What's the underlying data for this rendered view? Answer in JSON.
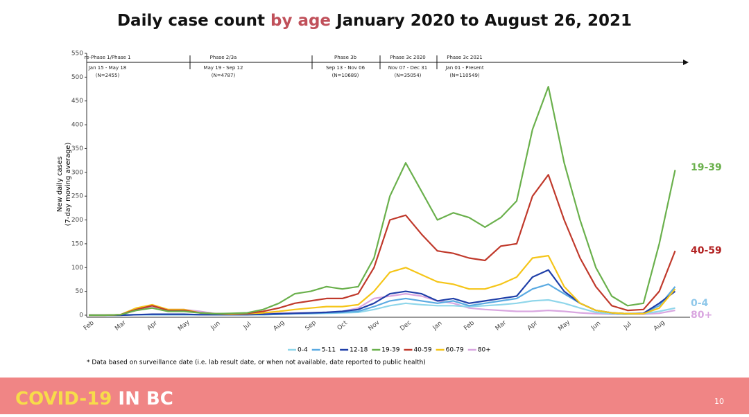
{
  "chart_data": {
    "type": "line",
    "title_parts": [
      "Daily case count",
      "by age",
      "January 2020 to August 26, 2021"
    ],
    "y_label_lines": [
      "New daily cases",
      "(7-day moving average)"
    ],
    "phases": [
      {
        "name": "re-Phase 1/Phase 1",
        "dates": "Jan 15 - May 18",
        "n": "(N=2455)"
      },
      {
        "name": "Phase 2/3a",
        "dates": "May 19 - Sep 12",
        "n": "(N=4787)"
      },
      {
        "name": "Phase 3b",
        "dates": "Sep 13 - Nov 06",
        "n": "(N=10689)"
      },
      {
        "name": "Phase 3c 2020",
        "dates": "Nov 07 - Dec 31",
        "n": "(N=35054)"
      },
      {
        "name": "Phase 3c 2021",
        "dates": "Jan 01 - Present",
        "n": "(N=110549)"
      }
    ],
    "categories": [
      "Feb",
      null,
      "Mar",
      null,
      "Apr",
      null,
      "May",
      null,
      "Jun",
      null,
      "Jul",
      null,
      "Aug",
      null,
      "Sep",
      null,
      "Oct",
      null,
      "Nov",
      null,
      "Dec",
      null,
      "Jan",
      null,
      "Feb",
      null,
      "Mar",
      null,
      "Apr",
      null,
      "May",
      null,
      "Jun",
      null,
      "Jul",
      null,
      "Aug",
      null
    ],
    "series": [
      {
        "name": "0-4",
        "color": "#8fd6ea",
        "values": [
          0,
          0,
          0,
          1,
          1,
          1,
          1,
          1,
          1,
          1,
          1,
          1,
          2,
          3,
          3,
          4,
          5,
          6,
          12,
          20,
          25,
          22,
          20,
          20,
          18,
          20,
          22,
          25,
          30,
          32,
          25,
          15,
          6,
          3,
          2,
          3,
          8,
          15
        ]
      },
      {
        "name": "5-11",
        "color": "#5aaae2",
        "values": [
          0,
          0,
          0,
          1,
          1,
          1,
          1,
          1,
          1,
          1,
          1,
          1,
          2,
          3,
          4,
          5,
          6,
          8,
          18,
          30,
          35,
          30,
          25,
          30,
          20,
          25,
          30,
          35,
          55,
          65,
          45,
          25,
          10,
          5,
          3,
          4,
          20,
          60
        ]
      },
      {
        "name": "12-18",
        "color": "#1f3fa8",
        "values": [
          0,
          0,
          0,
          1,
          2,
          2,
          2,
          1,
          1,
          1,
          1,
          2,
          3,
          4,
          5,
          6,
          8,
          12,
          25,
          45,
          50,
          45,
          30,
          35,
          25,
          30,
          35,
          40,
          80,
          95,
          50,
          25,
          10,
          5,
          3,
          4,
          25,
          50
        ]
      },
      {
        "name": "19-39",
        "color": "#6ab04c",
        "values": [
          0,
          0,
          1,
          10,
          15,
          8,
          8,
          5,
          3,
          4,
          5,
          12,
          25,
          45,
          50,
          60,
          55,
          60,
          120,
          250,
          320,
          260,
          200,
          215,
          205,
          185,
          205,
          240,
          390,
          480,
          320,
          200,
          100,
          40,
          20,
          25,
          150,
          305
        ]
      },
      {
        "name": "40-59",
        "color": "#c0392b",
        "values": [
          0,
          0,
          1,
          12,
          20,
          10,
          10,
          5,
          3,
          3,
          4,
          8,
          15,
          25,
          30,
          35,
          35,
          45,
          100,
          200,
          210,
          170,
          135,
          130,
          120,
          115,
          145,
          150,
          250,
          295,
          200,
          120,
          60,
          20,
          10,
          12,
          50,
          135
        ]
      },
      {
        "name": "60-79",
        "color": "#f5c518",
        "values": [
          0,
          0,
          1,
          15,
          22,
          12,
          12,
          5,
          3,
          2,
          3,
          5,
          8,
          12,
          15,
          18,
          18,
          22,
          50,
          90,
          100,
          85,
          70,
          65,
          55,
          55,
          65,
          80,
          120,
          125,
          60,
          25,
          10,
          5,
          3,
          3,
          15,
          55
        ]
      },
      {
        "name": "80+",
        "color": "#d9a6e0",
        "values": [
          0,
          0,
          1,
          10,
          18,
          12,
          12,
          8,
          3,
          2,
          2,
          3,
          4,
          5,
          5,
          6,
          8,
          15,
          35,
          40,
          45,
          40,
          30,
          25,
          15,
          12,
          10,
          8,
          8,
          10,
          8,
          5,
          3,
          2,
          2,
          2,
          4,
          10
        ]
      }
    ],
    "end_labels": [
      {
        "text": "19-39",
        "color": "#6ab04c"
      },
      {
        "text": "40-59",
        "color": "#b22222"
      },
      {
        "text": "0-4",
        "color": "#8fc8ea"
      },
      {
        "text": "80+",
        "color": "#d9a6e0"
      }
    ],
    "ylim": [
      0,
      550
    ],
    "yticks": [
      0,
      50,
      100,
      150,
      200,
      250,
      300,
      350,
      400,
      450,
      500,
      550
    ],
    "footnote": "* Data based on surveillance date (i.e. lab result date, or when not available, date reported to public health)",
    "footer": {
      "brand_parts": [
        "COVID-19",
        "IN BC"
      ],
      "page": "10"
    }
  }
}
